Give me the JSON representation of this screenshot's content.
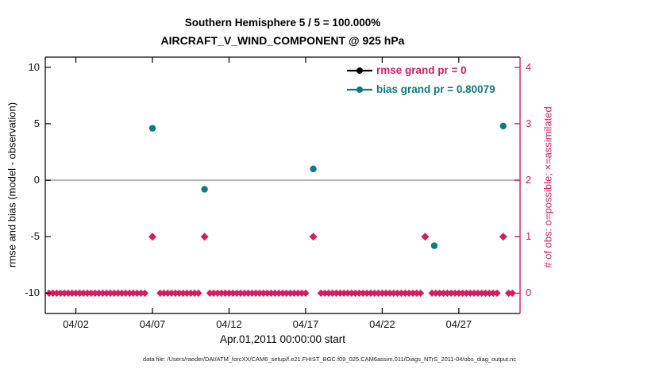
{
  "title": {
    "line1": "Southern Hemisphere 5 / 5 = 100.000%",
    "line2": "AIRCRAFT_V_WIND_COMPONENT @ 925 hPa"
  },
  "axes": {
    "y_left_label": "rmse and bias (model - observation)",
    "y_right_label": "# of obs: o=possible; ×=assimilated",
    "x_label": "Apr.01,2011 00:00:00 start"
  },
  "legend": {
    "rmse": {
      "label": "rmse grand pr = 0",
      "line_color": "#000000",
      "text_color": "#d81b60"
    },
    "bias": {
      "label": "bias grand pr = 0.80079",
      "line_color": "#0e7c7b",
      "text_color": "#0e7c7b"
    }
  },
  "caption": "data file: /Users/raeder/DAI/ATM_forcXX/CAM6_setup/f.e21.FHIST_BGC.f09_025.CAM6assim.011/Diags_NTrS_2011-04/obs_diag_output.nc",
  "colors": {
    "crimson": "#d81b60",
    "teal": "#0e7c7b",
    "zero_line": "#b3b3b3",
    "axis": "#000000"
  },
  "chart_data": {
    "type": "scatter",
    "title": "Southern Hemisphere 5 / 5 = 100.000% — AIRCRAFT_V_WIND_COMPONENT @ 925 hPa",
    "xlim": [
      0,
      31
    ],
    "x_ticks": [
      {
        "day": 2,
        "label": "04/02"
      },
      {
        "day": 7,
        "label": "04/07"
      },
      {
        "day": 12,
        "label": "04/12"
      },
      {
        "day": 17,
        "label": "04/17"
      },
      {
        "day": 22,
        "label": "04/22"
      },
      {
        "day": 27,
        "label": "04/27"
      }
    ],
    "ylim_left": [
      -11.8,
      10.9
    ],
    "y_left_ticks": [
      10,
      5,
      0,
      -5,
      -10
    ],
    "y_right_ticks": [
      4,
      3,
      2,
      1,
      0
    ],
    "right_axis_to_left_value": {
      "multiply": 5,
      "offset": -10
    },
    "zero_line_y": 0,
    "series": {
      "rmse": {
        "label": "rmse grand pr = 0",
        "marker": "circle",
        "color": "#000000",
        "points": []
      },
      "bias": {
        "label": "bias grand pr = 0.80079",
        "marker": "circle",
        "color": "#0e7c7b",
        "points": [
          {
            "day": 7.0,
            "value": 4.6
          },
          {
            "day": 10.4,
            "value": -0.8
          },
          {
            "day": 17.5,
            "value": 1.0
          },
          {
            "day": 25.4,
            "value": -5.8
          },
          {
            "day": 29.9,
            "value": 4.8
          }
        ]
      },
      "obs_count_assimilated": {
        "axis": "right",
        "marker": "diamond",
        "color": "#d81b60",
        "points": [
          {
            "day": 7.0,
            "count": 1
          },
          {
            "day": 10.4,
            "count": 1
          },
          {
            "day": 17.5,
            "count": 1
          },
          {
            "day": 24.8,
            "count": 1
          },
          {
            "day": 29.9,
            "count": 1
          }
        ]
      },
      "obs_count_row": {
        "axis": "right",
        "marker": "diamond",
        "color": "#d81b60",
        "count": 0,
        "day_start": 0.25,
        "day_end": 30.5,
        "day_step": 0.25,
        "gap_near_days": [
          7.0,
          10.4,
          17.5,
          24.8,
          29.9
        ],
        "gap_half_width": 0.3
      }
    }
  }
}
